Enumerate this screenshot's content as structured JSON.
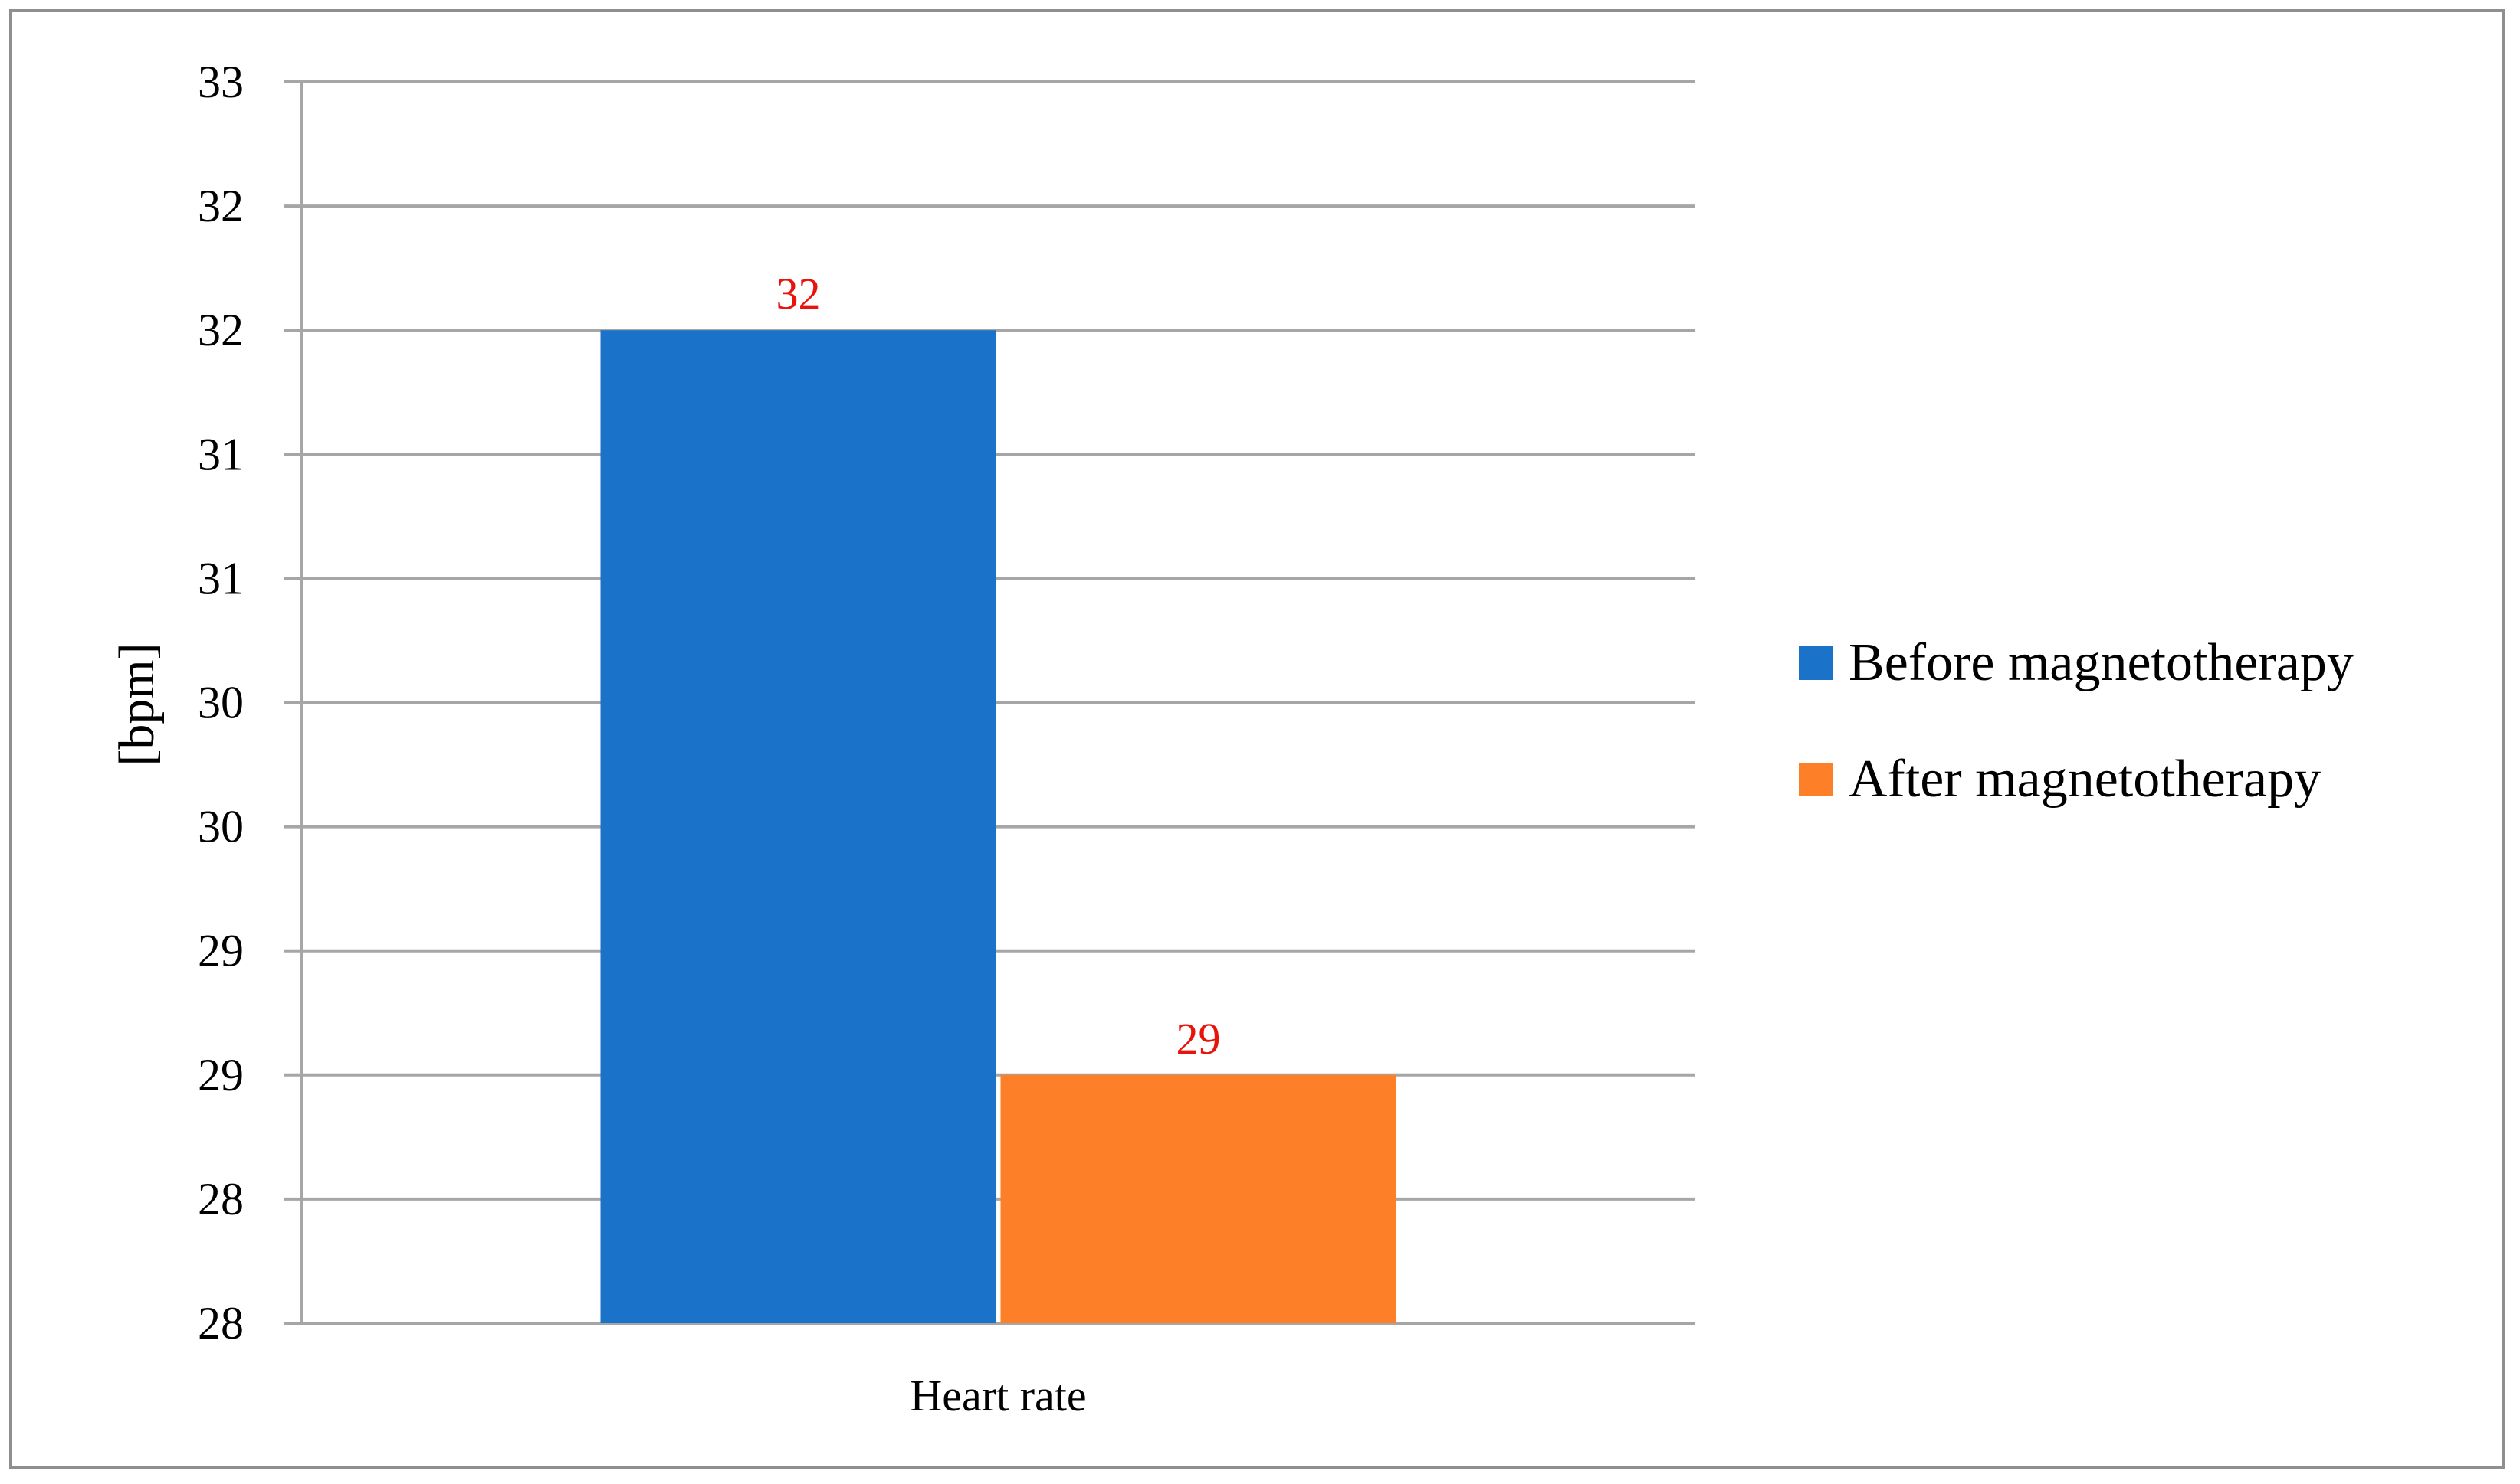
{
  "chart_data": {
    "type": "bar",
    "categories": [
      "Heart rate"
    ],
    "series": [
      {
        "name": "Before magnetotherapy",
        "values": [
          32
        ],
        "color": "#1a73c8"
      },
      {
        "name": "After magnetotherapy",
        "values": [
          29
        ],
        "color": "#fd7f28"
      }
    ],
    "data_labels": [
      "32",
      "29"
    ],
    "ylabel": "[bpm]",
    "xlabel": "",
    "ylim": [
      28,
      33
    ],
    "y_tick_labels": [
      "28",
      "28",
      "29",
      "29",
      "30",
      "30",
      "31",
      "31",
      "32",
      "32",
      "33"
    ],
    "grid": true,
    "legend_position": "right",
    "label_color": "#e8140c",
    "grid_color": "#a6a6a6"
  }
}
